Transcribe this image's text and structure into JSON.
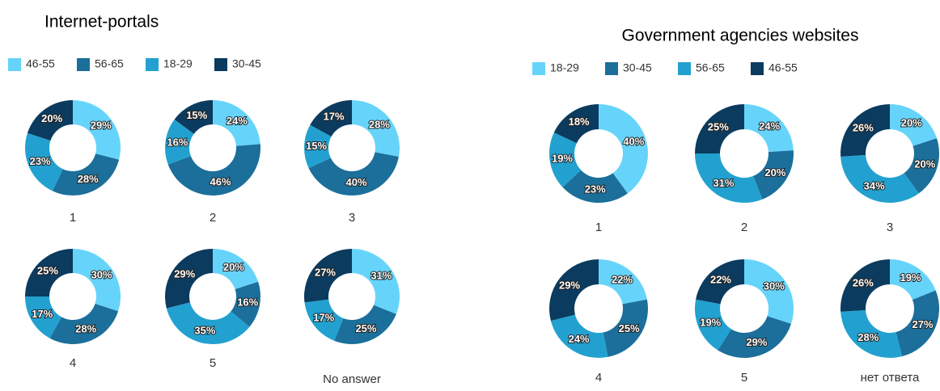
{
  "chart_data": [
    {
      "type": "donut",
      "title": "Internet-portals",
      "categories": [
        "46-55",
        "56-65",
        "18-29",
        "30-45"
      ],
      "colors": [
        "#66d4fa",
        "#1b6f9a",
        "#22a1d0",
        "#0b3b5e"
      ],
      "pies": [
        {
          "label": "1",
          "values": [
            29,
            28,
            23,
            20
          ],
          "value_labels": [
            "29%",
            "28%",
            "23%",
            "20%"
          ]
        },
        {
          "label": "2",
          "values": [
            24,
            46,
            16,
            15
          ],
          "value_labels": [
            "24%",
            "46%",
            "16%",
            "15%"
          ]
        },
        {
          "label": "3",
          "values": [
            28,
            40,
            15,
            17
          ],
          "value_labels": [
            "28%",
            "40%",
            "15%",
            "17%"
          ]
        },
        {
          "label": "4",
          "values": [
            30,
            28,
            17,
            25
          ],
          "value_labels": [
            "30%",
            "28%",
            "17%",
            "25%"
          ]
        },
        {
          "label": "5",
          "values": [
            20,
            16,
            35,
            29
          ],
          "value_labels": [
            "20%",
            "16%",
            "35%",
            "29%"
          ]
        },
        {
          "label": "No answer",
          "values": [
            31,
            25,
            17,
            27
          ],
          "value_labels": [
            "31%",
            "25%",
            "17%",
            "27%"
          ]
        }
      ]
    },
    {
      "type": "donut",
      "title": "Government agencies websites",
      "categories": [
        "18-29",
        "30-45",
        "56-65",
        "46-55"
      ],
      "colors": [
        "#66d4fa",
        "#1b6f9a",
        "#22a1d0",
        "#0b3b5e"
      ],
      "pies": [
        {
          "label": "1",
          "values": [
            40,
            23,
            19,
            18
          ],
          "value_labels": [
            "40%",
            "23%",
            "19%",
            "18%"
          ]
        },
        {
          "label": "2",
          "values": [
            24,
            20,
            31,
            25
          ],
          "value_labels": [
            "24%",
            "20%",
            "31%",
            "25%"
          ]
        },
        {
          "label": "3",
          "values": [
            20,
            20,
            34,
            26
          ],
          "value_labels": [
            "20%",
            "20%",
            "34%",
            "26%"
          ]
        },
        {
          "label": "4",
          "values": [
            22,
            25,
            24,
            29
          ],
          "value_labels": [
            "22%",
            "25%",
            "24%",
            "29%"
          ]
        },
        {
          "label": "5",
          "values": [
            30,
            29,
            19,
            22
          ],
          "value_labels": [
            "30%",
            "29%",
            "19%",
            "22%"
          ]
        },
        {
          "label": "нет ответа",
          "values": [
            19,
            27,
            28,
            26
          ],
          "value_labels": [
            "19%",
            "27%",
            "28%",
            "26%"
          ]
        }
      ]
    }
  ]
}
